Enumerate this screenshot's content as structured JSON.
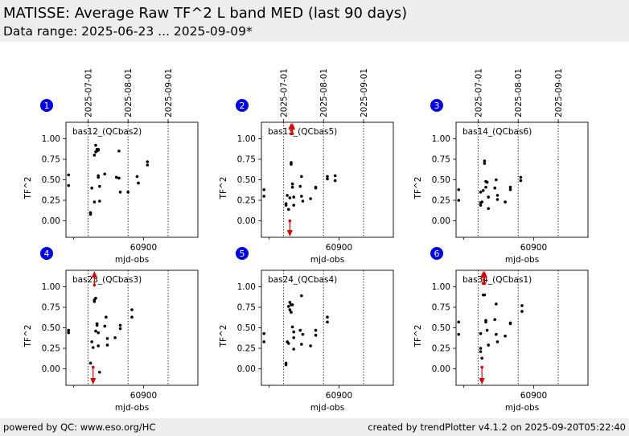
{
  "header": {
    "title": "MATISSE: Average Raw TF^2 L band MED (last 90 days)",
    "subtitle": "Data range: 2025-06-23 ... 2025-09-09*"
  },
  "footer": {
    "left": "powered by QC: www.eso.org/HC",
    "right": "created by trendPlotter v4.1.2 on 2025-09-20T05:22:40"
  },
  "colors": {
    "marker": "#000000",
    "outlier": "#e00000",
    "badge": "#0000ee",
    "header_bg": "#eeeeee"
  },
  "chart_data": {
    "type": "scatter",
    "xlabel": "mjd-obs",
    "ylabel": "TF^2",
    "xlim": [
      60840,
      60942
    ],
    "ylim": [
      -0.2,
      1.2
    ],
    "x_ticks": [
      60900
    ],
    "y_ticks": [
      "0.00",
      "0.25",
      "0.50",
      "0.75",
      "1.00"
    ],
    "date_marks": [
      {
        "label": "2025-07-01",
        "mjd": 60857
      },
      {
        "label": "2025-08-01",
        "mjd": 60888
      },
      {
        "label": "2025-09-01",
        "mjd": 60919
      }
    ],
    "panels": [
      {
        "index": "1",
        "label": "bas12_(QCbas2)",
        "points": [
          [
            60842,
            0.56
          ],
          [
            60842,
            0.43
          ],
          [
            60859,
            0.1
          ],
          [
            60859,
            0.08
          ],
          [
            60860,
            0.4
          ],
          [
            60862,
            0.8
          ],
          [
            60862,
            0.23
          ],
          [
            60863,
            0.92
          ],
          [
            60863,
            0.84
          ],
          [
            60864,
            0.87
          ],
          [
            60864,
            0.85
          ],
          [
            60865,
            0.86
          ],
          [
            60865,
            0.87
          ],
          [
            60865,
            0.55
          ],
          [
            60865,
            0.53
          ],
          [
            60866,
            0.24
          ],
          [
            60866,
            0.42
          ],
          [
            60870,
            0.57
          ],
          [
            60879,
            0.53
          ],
          [
            60881,
            0.85
          ],
          [
            60881,
            0.52
          ],
          [
            60882,
            0.35
          ],
          [
            60888,
            0.35
          ],
          [
            60895,
            0.54
          ],
          [
            60896,
            0.46
          ],
          [
            60903,
            0.72
          ],
          [
            60903,
            0.68
          ]
        ],
        "arrows_up": [],
        "arrows_down": []
      },
      {
        "index": "2",
        "label": "bas13_(QCbas5)",
        "points": [
          [
            60842,
            0.38
          ],
          [
            60842,
            0.3
          ],
          [
            60859,
            0.21
          ],
          [
            60859,
            0.19
          ],
          [
            60860,
            0.31
          ],
          [
            60861,
            0.14
          ],
          [
            60862,
            0.28
          ],
          [
            60863,
            0.69
          ],
          [
            60863,
            0.71
          ],
          [
            60864,
            0.45
          ],
          [
            60864,
            0.41
          ],
          [
            60865,
            0.29
          ],
          [
            60865,
            0.19
          ],
          [
            60870,
            0.42
          ],
          [
            60871,
            0.54
          ],
          [
            60871,
            0.3
          ],
          [
            60872,
            0.24
          ],
          [
            60878,
            0.27
          ],
          [
            60882,
            0.41
          ],
          [
            60882,
            0.4
          ],
          [
            60891,
            0.54
          ],
          [
            60891,
            0.51
          ],
          [
            60897,
            0.49
          ],
          [
            60897,
            0.55
          ]
        ],
        "arrows_up": [
          [
            60863,
            1.06
          ],
          [
            60864,
            1.06
          ]
        ],
        "arrows_down": [
          [
            60862,
            0.0
          ]
        ]
      },
      {
        "index": "3",
        "label": "bas14_(QCbas6)",
        "points": [
          [
            60842,
            0.38
          ],
          [
            60842,
            0.25
          ],
          [
            60859,
            0.35
          ],
          [
            60859,
            0.19
          ],
          [
            60859,
            0.22
          ],
          [
            60860,
            0.23
          ],
          [
            60861,
            0.37
          ],
          [
            60862,
            0.73
          ],
          [
            60862,
            0.7
          ],
          [
            60863,
            0.48
          ],
          [
            60863,
            0.41
          ],
          [
            60864,
            0.47
          ],
          [
            60865,
            0.29
          ],
          [
            60865,
            0.15
          ],
          [
            60870,
            0.4
          ],
          [
            60871,
            0.5
          ],
          [
            60872,
            0.31
          ],
          [
            60872,
            0.26
          ],
          [
            60878,
            0.23
          ],
          [
            60882,
            0.38
          ],
          [
            60882,
            0.41
          ],
          [
            60890,
            0.53
          ],
          [
            60890,
            0.49
          ]
        ],
        "arrows_up": [],
        "arrows_down": []
      },
      {
        "index": "4",
        "label": "bas23_(QCbas3)",
        "points": [
          [
            60842,
            0.47
          ],
          [
            60842,
            0.44
          ],
          [
            60859,
            0.07
          ],
          [
            60860,
            0.33
          ],
          [
            60861,
            0.26
          ],
          [
            60862,
            0.82
          ],
          [
            60862,
            0.84
          ],
          [
            60863,
            0.86
          ],
          [
            60863,
            0.46
          ],
          [
            60864,
            0.53
          ],
          [
            60864,
            0.55
          ],
          [
            60865,
            0.44
          ],
          [
            60865,
            0.28
          ],
          [
            60866,
            -0.04
          ],
          [
            60870,
            0.52
          ],
          [
            60871,
            0.63
          ],
          [
            60872,
            0.37
          ],
          [
            60872,
            0.29
          ],
          [
            60878,
            0.38
          ],
          [
            60882,
            0.53
          ],
          [
            60882,
            0.49
          ],
          [
            60891,
            0.72
          ],
          [
            60891,
            0.63
          ]
        ],
        "arrows_up": [
          [
            60862,
            1.02
          ]
        ],
        "arrows_down": [
          [
            60861,
            0.02
          ]
        ]
      },
      {
        "index": "5",
        "label": "bas24_(QCbas4)",
        "points": [
          [
            60842,
            0.43
          ],
          [
            60842,
            0.33
          ],
          [
            60859,
            0.07
          ],
          [
            60859,
            0.05
          ],
          [
            60860,
            0.33
          ],
          [
            60861,
            0.76
          ],
          [
            60861,
            0.31
          ],
          [
            60862,
            0.81
          ],
          [
            60862,
            0.72
          ],
          [
            60863,
            0.69
          ],
          [
            60863,
            0.78
          ],
          [
            60864,
            0.78
          ],
          [
            60864,
            0.51
          ],
          [
            60865,
            0.45
          ],
          [
            60865,
            0.38
          ],
          [
            60865,
            0.24
          ],
          [
            60870,
            0.47
          ],
          [
            60871,
            0.89
          ],
          [
            60871,
            0.3
          ],
          [
            60872,
            0.42
          ],
          [
            60878,
            0.28
          ],
          [
            60882,
            0.47
          ],
          [
            60882,
            0.41
          ],
          [
            60891,
            0.63
          ],
          [
            60891,
            0.57
          ]
        ],
        "arrows_up": [],
        "arrows_down": []
      },
      {
        "index": "6",
        "label": "bas34_(QCbas1)",
        "points": [
          [
            60842,
            0.57
          ],
          [
            60842,
            0.42
          ],
          [
            60859,
            0.43
          ],
          [
            60859,
            0.25
          ],
          [
            60859,
            0.21
          ],
          [
            60860,
            0.13
          ],
          [
            60861,
            0.9
          ],
          [
            60862,
            0.9
          ],
          [
            60863,
            0.59
          ],
          [
            60863,
            0.57
          ],
          [
            60864,
            0.47
          ],
          [
            60865,
            0.29
          ],
          [
            60870,
            0.6
          ],
          [
            60871,
            0.79
          ],
          [
            60871,
            0.42
          ],
          [
            60872,
            0.33
          ],
          [
            60878,
            0.4
          ],
          [
            60882,
            0.56
          ],
          [
            60882,
            0.55
          ],
          [
            60891,
            0.77
          ],
          [
            60891,
            0.7
          ]
        ],
        "arrows_up": [
          [
            60861,
            1.04
          ],
          [
            60862,
            1.04
          ]
        ],
        "arrows_down": [
          [
            60860,
            0.02
          ]
        ]
      }
    ]
  }
}
